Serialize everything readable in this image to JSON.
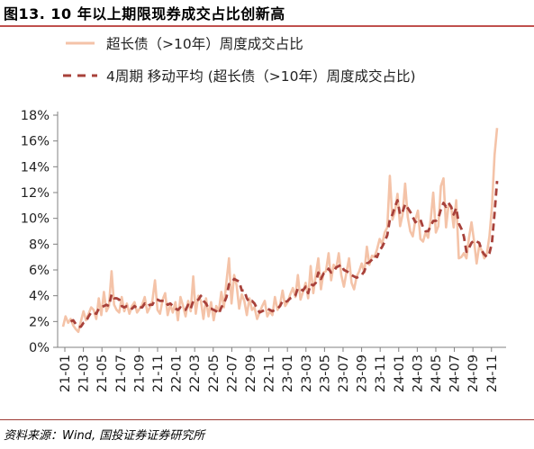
{
  "header": {
    "title": "图13. 10 年以上期限现券成交占比创新高"
  },
  "footer": {
    "source": "资料来源：Wind, 国投证券证券研究所"
  },
  "colors": {
    "raw_series": "#f4c3a8",
    "ma_series": "#a8413a",
    "title_rule": "#c0504d",
    "axis": "#808080"
  },
  "chart_data": {
    "type": "line",
    "title": "",
    "xlabel": "",
    "ylabel": "",
    "ylim": [
      0,
      18
    ],
    "yticks": [
      "0%",
      "2%",
      "4%",
      "6%",
      "8%",
      "10%",
      "12%",
      "14%",
      "16%",
      "18%"
    ],
    "xticks": [
      "21-01",
      "21-03",
      "21-05",
      "21-07",
      "21-09",
      "21-11",
      "22-01",
      "22-03",
      "22-05",
      "22-07",
      "22-09",
      "22-11",
      "23-01",
      "23-03",
      "23-05",
      "23-07",
      "23-09",
      "23-11",
      "24-01",
      "24-03",
      "24-05",
      "24-07",
      "24-09",
      "24-11"
    ],
    "legend": {
      "position": "top"
    },
    "series": [
      {
        "name": "超长债（>10年）周度成交占比",
        "style": "solid",
        "values": [
          1.6,
          2.4,
          1.9,
          2.2,
          1.7,
          1.4,
          1.2,
          2.0,
          2.8,
          2.1,
          2.6,
          3.1,
          2.9,
          2.2,
          3.8,
          2.5,
          4.3,
          2.8,
          3.2,
          5.9,
          3.3,
          2.9,
          2.7,
          3.9,
          2.8,
          3.4,
          2.6,
          3.2,
          3.5,
          2.7,
          3.0,
          3.3,
          3.9,
          2.7,
          3.1,
          3.6,
          5.2,
          2.9,
          2.6,
          3.7,
          4.2,
          2.5,
          3.3,
          2.7,
          3.5,
          2.1,
          3.9,
          3.2,
          2.4,
          3.6,
          2.8,
          5.5,
          2.6,
          4.0,
          3.6,
          2.2,
          3.8,
          2.4,
          3.5,
          2.1,
          3.2,
          2.8,
          4.3,
          3.1,
          5.1,
          6.9,
          3.4,
          5.6,
          4.8,
          3.0,
          4.1,
          3.6,
          2.5,
          3.8,
          2.9,
          3.1,
          2.2,
          2.7,
          3.2,
          3.6,
          2.4,
          2.8,
          2.5,
          3.9,
          2.9,
          3.3,
          4.4,
          3.2,
          3.5,
          4.1,
          4.6,
          3.9,
          5.6,
          3.7,
          4.3,
          5.0,
          3.8,
          6.3,
          4.2,
          5.6,
          6.9,
          4.5,
          5.8,
          5.9,
          7.3,
          5.2,
          6.4,
          6.1,
          7.3,
          5.6,
          4.7,
          5.8,
          6.9,
          5.0,
          4.5,
          5.5,
          5.9,
          6.5,
          5.8,
          7.8,
          6.4,
          7.1,
          7.0,
          7.6,
          8.4,
          8.0,
          8.9,
          9.3,
          13.3,
          9.9,
          10.5,
          11.9,
          9.4,
          10.3,
          12.7,
          10.1,
          9.0,
          8.6,
          9.9,
          10.6,
          8.4,
          8.2,
          8.9,
          8.5,
          9.9,
          12.0,
          8.9,
          9.4,
          12.5,
          13.1,
          9.3,
          11.0,
          10.9,
          9.3,
          11.4,
          6.9,
          7.0,
          7.3,
          6.9,
          8.5,
          9.7,
          8.2,
          6.5,
          7.9,
          7.5,
          6.9,
          7.3,
          8.6,
          10.9,
          14.9,
          17.0
        ]
      },
      {
        "name": "4周期 移动平均 (超长债（>10年）周度成交占比)",
        "style": "dashed",
        "values": [
          null,
          null,
          null,
          2.0,
          2.1,
          1.8,
          1.6,
          1.6,
          1.9,
          2.0,
          2.4,
          2.7,
          2.7,
          2.6,
          3.0,
          3.1,
          3.2,
          3.3,
          3.2,
          4.1,
          3.8,
          3.8,
          3.7,
          3.2,
          3.1,
          3.2,
          3.2,
          3.0,
          3.2,
          3.0,
          3.1,
          3.1,
          3.4,
          3.2,
          3.3,
          3.3,
          3.7,
          3.7,
          3.6,
          3.6,
          3.6,
          3.3,
          3.4,
          3.2,
          3.0,
          2.9,
          3.1,
          2.9,
          2.9,
          3.3,
          3.0,
          3.6,
          3.6,
          3.7,
          4.0,
          3.6,
          3.4,
          3.0,
          3.0,
          2.9,
          2.8,
          2.6,
          3.1,
          3.4,
          3.9,
          4.9,
          5.0,
          5.3,
          5.2,
          5.1,
          4.4,
          4.4,
          3.8,
          3.5,
          3.6,
          3.4,
          3.0,
          2.7,
          2.8,
          2.9,
          3.0,
          2.9,
          2.8,
          2.9,
          3.0,
          3.2,
          3.6,
          3.5,
          3.6,
          3.8,
          3.9,
          4.0,
          4.6,
          4.5,
          4.4,
          4.7,
          4.2,
          4.9,
          4.8,
          5.0,
          5.8,
          5.3,
          5.7,
          5.8,
          6.1,
          5.8,
          5.9,
          6.2,
          6.3,
          6.4,
          6.0,
          5.9,
          5.8,
          5.6,
          5.5,
          5.4,
          5.5,
          5.6,
          5.9,
          6.5,
          6.6,
          6.8,
          7.1,
          7.0,
          7.5,
          7.8,
          8.2,
          8.7,
          9.9,
          10.3,
          10.9,
          11.4,
          10.3,
          10.5,
          11.1,
          10.8,
          10.5,
          10.1,
          9.7,
          9.9,
          9.9,
          9.3,
          9.0,
          9.0,
          9.4,
          9.8,
          9.8,
          10.0,
          10.7,
          11.2,
          10.9,
          11.2,
          10.9,
          10.3,
          10.8,
          9.6,
          9.2,
          8.6,
          7.4,
          7.7,
          8.1,
          8.3,
          8.2,
          8.1,
          7.5,
          7.2,
          7.0,
          7.3,
          8.1,
          10.4,
          12.9
        ]
      }
    ]
  }
}
